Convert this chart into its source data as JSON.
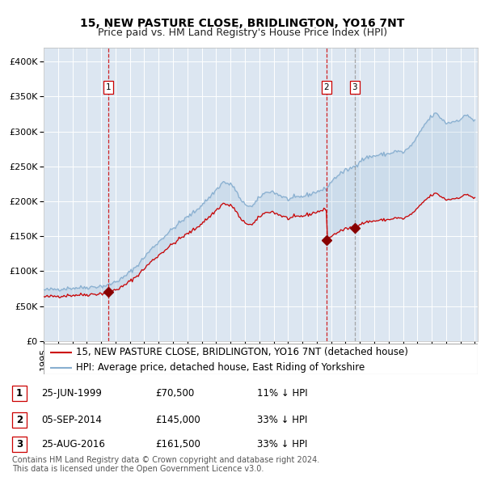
{
  "title": "15, NEW PASTURE CLOSE, BRIDLINGTON, YO16 7NT",
  "subtitle": "Price paid vs. HM Land Registry's House Price Index (HPI)",
  "ylim": [
    0,
    420000
  ],
  "yticks": [
    0,
    50000,
    100000,
    150000,
    200000,
    250000,
    300000,
    350000,
    400000
  ],
  "ytick_labels": [
    "£0",
    "£50K",
    "£100K",
    "£150K",
    "£200K",
    "£250K",
    "£300K",
    "£350K",
    "£400K"
  ],
  "bg_color": "#dce6f1",
  "grid_color": "#ffffff",
  "red_line_color": "#cc0000",
  "blue_line_color": "#88afd0",
  "sale_marker_color": "#880000",
  "sale_dates": [
    1999.48,
    2014.67,
    2016.65
  ],
  "sale_prices": [
    70500,
    145000,
    161500
  ],
  "sale_labels": [
    "1",
    "2",
    "3"
  ],
  "vline_colors": [
    "#cc0000",
    "#cc0000",
    "#999999"
  ],
  "label_box_colors": [
    "#cc0000",
    "#cc0000",
    "#cc0000"
  ],
  "legend_entries": [
    "15, NEW PASTURE CLOSE, BRIDLINGTON, YO16 7NT (detached house)",
    "HPI: Average price, detached house, East Riding of Yorkshire"
  ],
  "table_rows": [
    [
      "1",
      "25-JUN-1999",
      "£70,500",
      "11% ↓ HPI"
    ],
    [
      "2",
      "05-SEP-2014",
      "£145,000",
      "33% ↓ HPI"
    ],
    [
      "3",
      "25-AUG-2016",
      "£161,500",
      "33% ↓ HPI"
    ]
  ],
  "footer_text": "Contains HM Land Registry data © Crown copyright and database right 2024.\nThis data is licensed under the Open Government Licence v3.0.",
  "title_fontsize": 10,
  "subtitle_fontsize": 9,
  "tick_fontsize": 8,
  "legend_fontsize": 8.5,
  "table_fontsize": 8.5,
  "footer_fontsize": 7
}
